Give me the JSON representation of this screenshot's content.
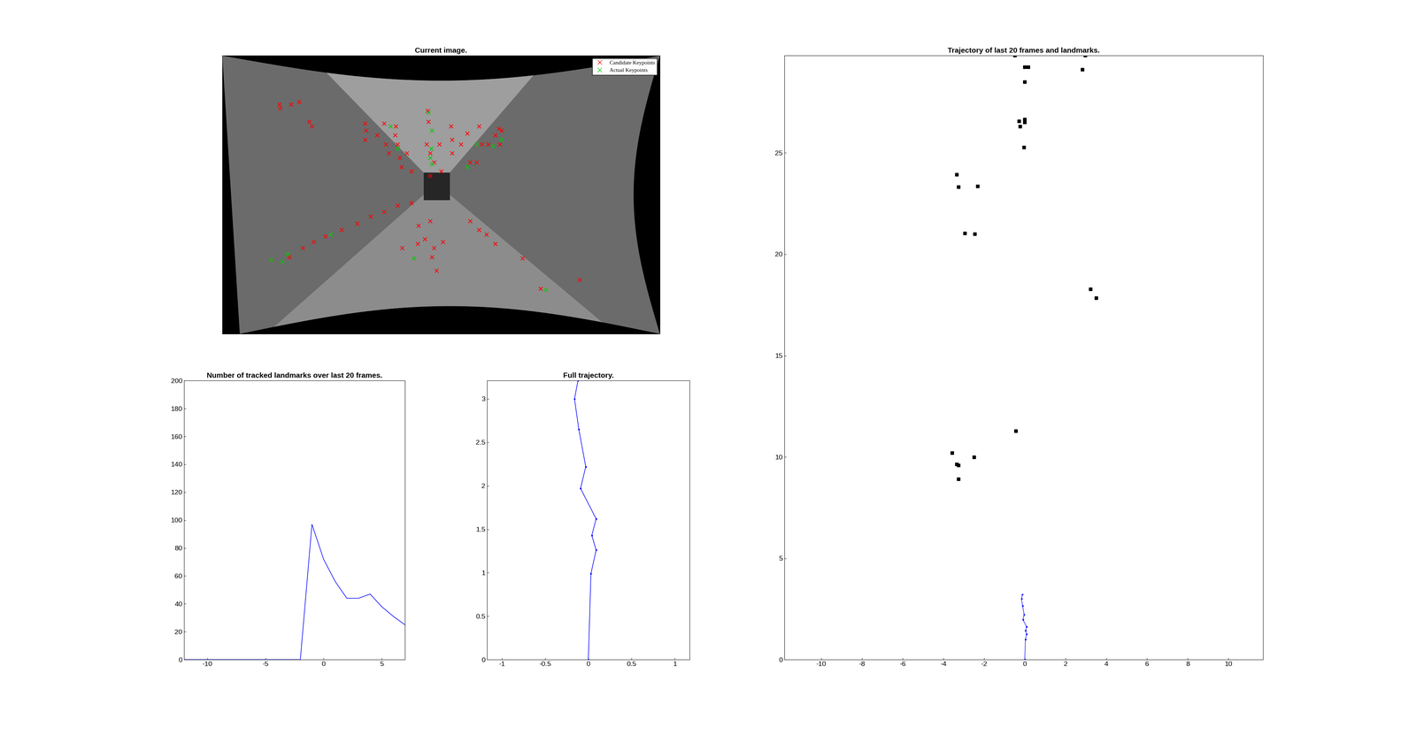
{
  "chart_data": [
    {
      "type": "scatter",
      "title": "Current image.",
      "xlim": [
        0,
        484
      ],
      "ylim": [
        308,
        0
      ],
      "tick_labels": false,
      "legend": "upper right",
      "series": [
        {
          "name": "Candidate Keypoints",
          "color": "#ff0000",
          "marker": "x",
          "x": [
            63,
            64,
            76,
            85,
            96,
            99,
            158,
            159,
            158,
            171,
            179,
            181,
            184,
            192,
            191,
            194,
            196,
            198,
            204,
            209,
            227,
            228,
            226,
            230,
            234,
            230,
            242,
            240,
            253,
            254,
            254,
            264,
            271,
            274,
            281,
            284,
            287,
            294,
            302,
            306,
            309,
            307,
            54,
            74,
            89,
            101,
            114,
            132,
            149,
            164,
            179,
            194,
            209,
            199,
            216,
            224,
            234,
            232,
            237,
            244,
            217,
            230,
            274,
            284,
            292,
            302,
            332,
            352,
            395
          ],
          "values": [
            54,
            58,
            54,
            51,
            73,
            78,
            75,
            83,
            93,
            88,
            75,
            98,
            108,
            78,
            88,
            98,
            113,
            123,
            108,
            128,
            61,
            73,
            98,
            108,
            118,
            133,
            128,
            98,
            78,
            93,
            108,
            98,
            86,
            118,
            118,
            78,
            98,
            98,
            88,
            81,
            83,
            98,
            226,
            223,
            213,
            206,
            200,
            193,
            186,
            178,
            173,
            166,
            163,
            213,
            208,
            203,
            213,
            223,
            238,
            206,
            188,
            183,
            183,
            193,
            198,
            208,
            224,
            258,
            248
          ]
        },
        {
          "name": "Actual Keypoints",
          "color": "#00cc00",
          "marker": "x",
          "x": [
            54,
            72,
            66,
            120,
            186,
            194,
            231,
            230,
            232,
            232,
            228,
            271,
            299,
            309,
            212,
            358,
            281
          ],
          "values": [
            226,
            220,
            228,
            198,
            78,
            103,
            103,
            113,
            120,
            83,
            63,
            123,
            100,
            93,
            224,
            259,
            98
          ]
        }
      ]
    },
    {
      "type": "line",
      "title": "Number of tracked landmarks over last 20 frames.",
      "color": "#0000ff",
      "x": [
        -12,
        -11,
        -10,
        -9,
        -8,
        -7,
        -6,
        -5,
        -4,
        -3,
        -2,
        -1,
        0,
        1,
        2,
        3,
        4,
        5,
        6,
        7
      ],
      "values": [
        0,
        0,
        0,
        0,
        0,
        0,
        0,
        0,
        0,
        0,
        0,
        97,
        72,
        56,
        44,
        44,
        47,
        38,
        31,
        25
      ],
      "xlim": [
        -12,
        7
      ],
      "xticks": [
        -10,
        -5,
        0,
        5
      ],
      "ylim": [
        0,
        200
      ],
      "yticks": [
        0,
        20,
        40,
        60,
        80,
        100,
        120,
        140,
        160,
        180,
        200
      ]
    },
    {
      "type": "line",
      "title": "Full trajectory.",
      "color": "#0000ff",
      "marker": ".",
      "x": [
        0,
        0.03,
        0.09,
        0.04,
        0.09,
        -0.09,
        -0.03,
        -0.11,
        -0.16,
        -0.12
      ],
      "values": [
        0,
        0.99,
        1.26,
        1.43,
        1.62,
        1.97,
        2.22,
        2.65,
        3.0,
        3.21
      ],
      "xlim": [
        -1.17,
        1.17
      ],
      "xticks": [
        -1,
        -0.5,
        0,
        0.5,
        1
      ],
      "ylim": [
        0,
        3.21
      ],
      "yticks": [
        0,
        0.5,
        1,
        1.5,
        2,
        2.5,
        3
      ]
    },
    {
      "type": "scatter",
      "title": "Trajectory of last 20 frames and landmarks.",
      "xlim": [
        -11.8,
        11.7
      ],
      "xticks": [
        -10,
        -8,
        -6,
        -4,
        -2,
        0,
        2,
        4,
        6,
        8,
        10
      ],
      "ylim": [
        0,
        29.8
      ],
      "yticks": [
        0,
        5,
        10,
        15,
        20,
        25
      ],
      "series": [
        {
          "type": "line",
          "color": "#0000ff",
          "marker": ".",
          "x": [
            0,
            0.03,
            0.09,
            0.04,
            0.09,
            -0.09,
            -0.03,
            -0.11,
            -0.16,
            -0.12
          ],
          "values": [
            0,
            0.99,
            1.26,
            1.43,
            1.62,
            1.97,
            2.22,
            2.65,
            3.0,
            3.21
          ]
        },
        {
          "type": "scatter",
          "color": "#000000",
          "marker": "s",
          "x": [
            -0.49,
            2.98,
            0,
            0.18,
            2.84,
            0,
            -0.27,
            0,
            0,
            -0.22,
            -0.04,
            -3.33,
            -3.24,
            -2.31,
            -2.93,
            -2.44,
            3.24,
            3.51,
            -0.44,
            -3.56,
            -2.49,
            -3.33,
            -3.24,
            -3.24
          ],
          "values": [
            29.8,
            29.8,
            29.23,
            29.23,
            29.1,
            28.5,
            26.56,
            26.65,
            26.5,
            26.3,
            25.27,
            23.93,
            23.31,
            23.35,
            21.03,
            20.99,
            18.27,
            17.83,
            11.27,
            10.2,
            9.98,
            9.63,
            9.58,
            8.91
          ]
        }
      ]
    }
  ]
}
